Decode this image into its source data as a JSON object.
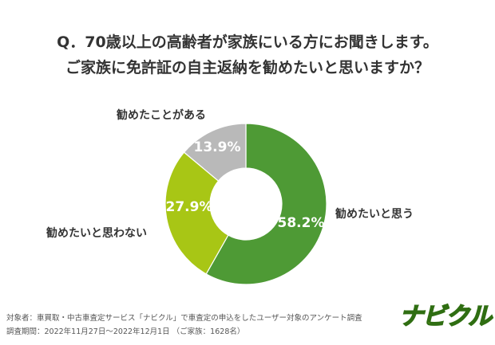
{
  "chart_data": {
    "type": "pie",
    "title": "Q．70歳以上の高齢者が家族にいる方にお聞きします。",
    "subtitle": "ご家族に免許証の自主返納を勧めたいと思いますか？",
    "categories": [
      "勧めたいと思う",
      "勧めたいと思わない",
      "勧めたことがある"
    ],
    "values": [
      58.2,
      27.9,
      13.9
    ],
    "value_labels": [
      "58.2%",
      "27.9%",
      "13.9%"
    ],
    "colors": [
      "#4e9a35",
      "#a8c615",
      "#b9b9b9"
    ],
    "donut": true
  },
  "footer": {
    "line1": "対象者：車買取・中古車査定サービス「ナビクル」で車査定の申込をしたユーザー対象のアンケート調査",
    "line2": "調査期間：2022年11月27日〜2022年12月1日 （ご家族：1628名）"
  },
  "logo": "ナビクル"
}
